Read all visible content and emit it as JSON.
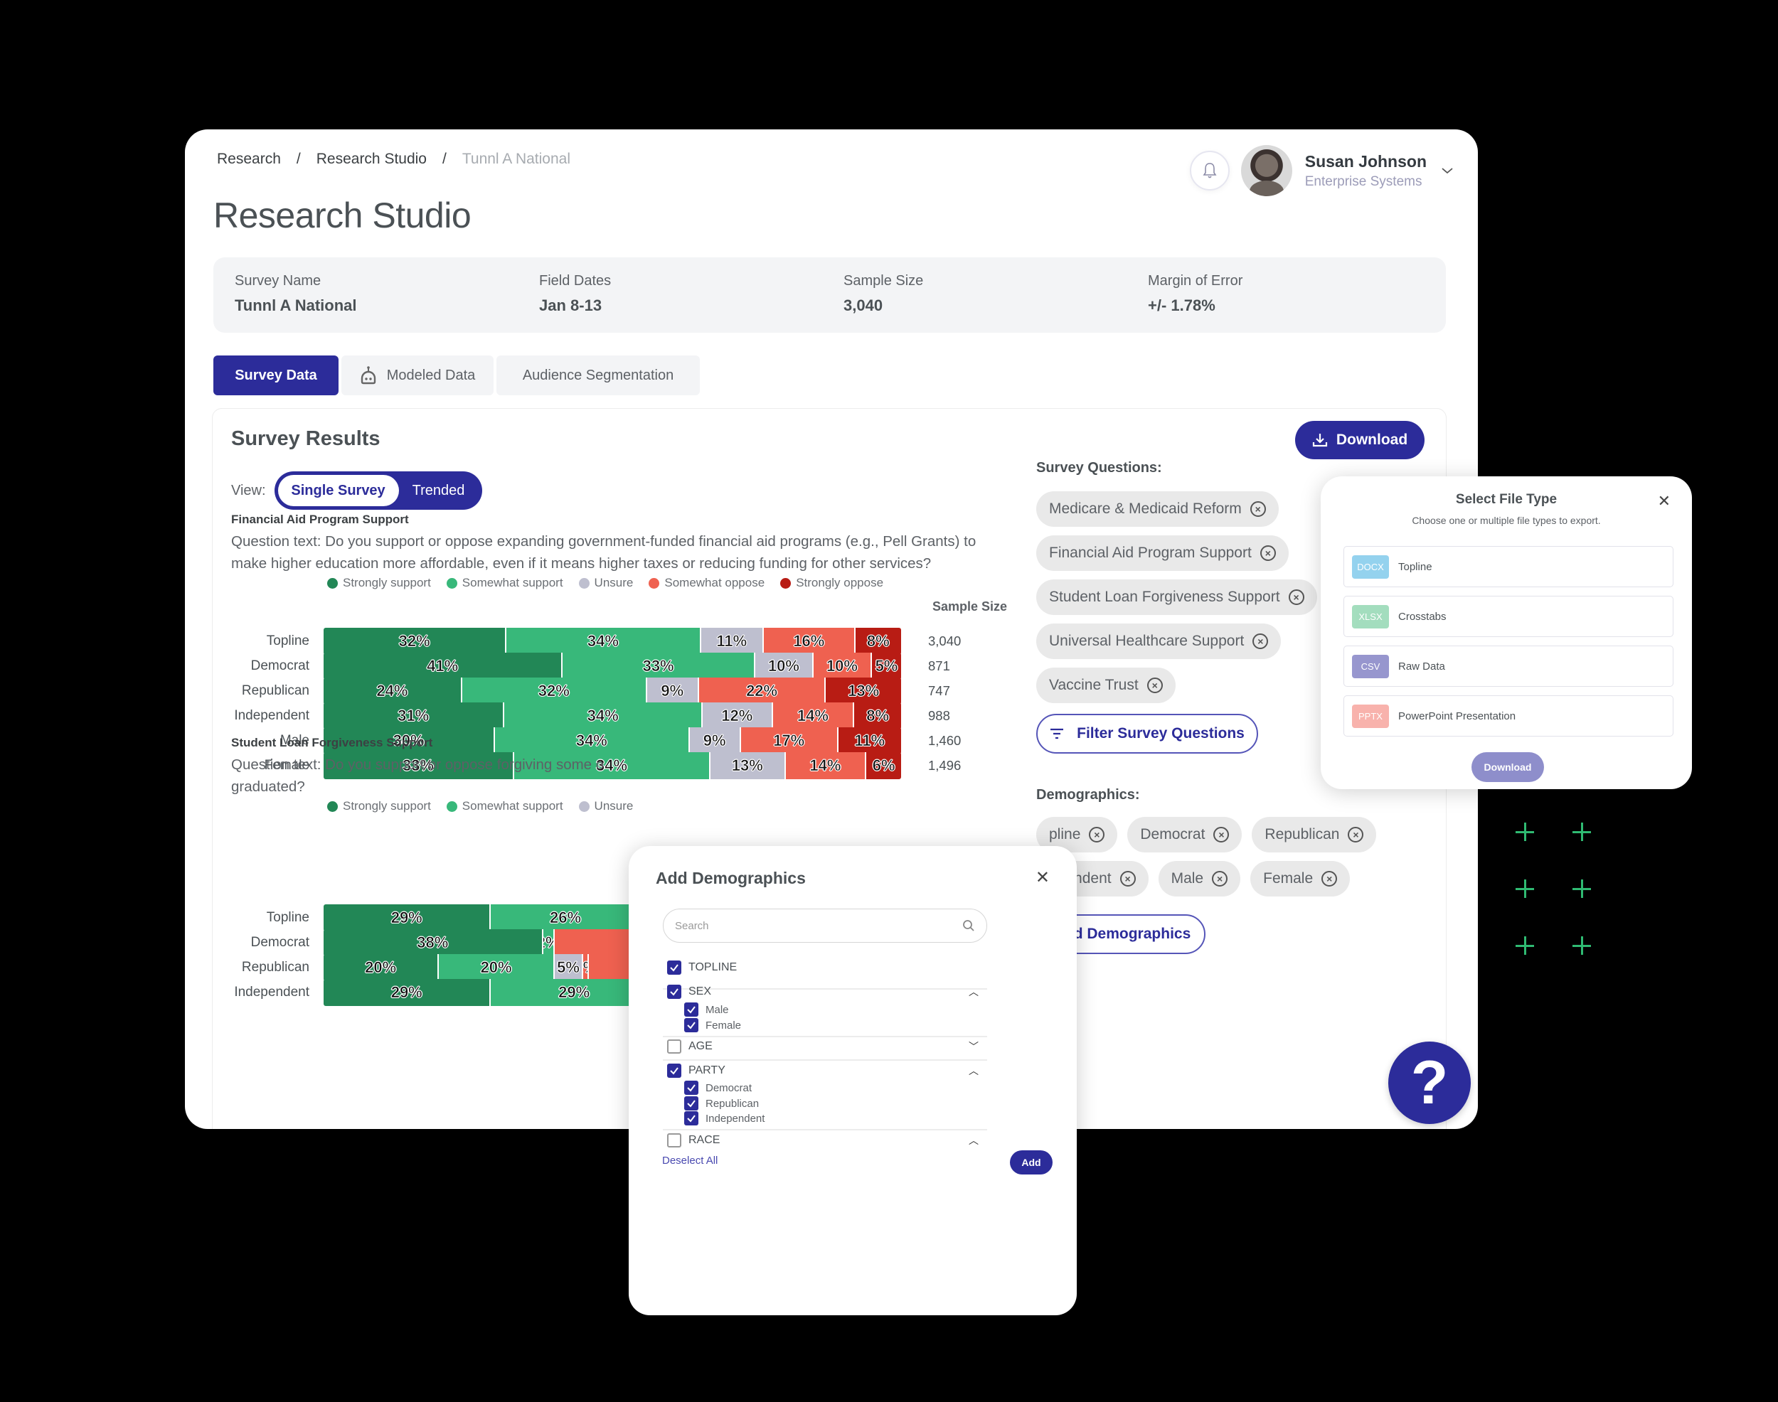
{
  "breadcrumb": [
    "Research",
    "Research Studio",
    "Tunnl A National"
  ],
  "page_title": "Research Studio",
  "user": {
    "name": "Susan Johnson",
    "org": "Enterprise Systems"
  },
  "info": [
    {
      "label": "Survey Name",
      "value": "Tunnl A National"
    },
    {
      "label": "Field Dates",
      "value": "Jan 8-13"
    },
    {
      "label": "Sample Size",
      "value": "3,040"
    },
    {
      "label": "Margin of Error",
      "value": "+/- 1.78%"
    }
  ],
  "tabs": [
    {
      "label": "Survey Data",
      "active": true
    },
    {
      "label": "Modeled Data",
      "icon": "robot-icon"
    },
    {
      "label": "Audience Segmentation"
    }
  ],
  "results": {
    "title": "Survey Results",
    "download_label": "Download",
    "view_label": "View:",
    "view_options": [
      "Single Survey",
      "Trended"
    ],
    "sample_size_header": "Sample Size"
  },
  "colors": {
    "strongly_support": "#228756",
    "somewhat_support": "#38b87a",
    "unsure": "#bebfcf",
    "somewhat_oppose": "#ef6150",
    "strongly_oppose": "#b81c14",
    "accent": "#2c2c9a"
  },
  "legend": [
    "Strongly support",
    "Somewhat support",
    "Unsure",
    "Somewhat oppose",
    "Strongly oppose"
  ],
  "chart_data": [
    {
      "type": "bar",
      "stacked": true,
      "orientation": "horizontal",
      "title": "Financial Aid Program Support",
      "question": "Question text: Do you support or oppose expanding government-funded financial aid programs (e.g., Pell Grants) to make higher education more affordable, even if it means higher taxes or reducing funding for other services?",
      "categories": [
        "Topline",
        "Democrat",
        "Republican",
        "Independent",
        "Male",
        "Female"
      ],
      "series": [
        {
          "name": "Strongly support",
          "values": [
            32,
            41,
            24,
            31,
            30,
            33
          ]
        },
        {
          "name": "Somewhat support",
          "values": [
            34,
            33,
            32,
            34,
            34,
            34
          ]
        },
        {
          "name": "Unsure",
          "values": [
            11,
            10,
            9,
            12,
            9,
            13
          ]
        },
        {
          "name": "Somewhat oppose",
          "values": [
            16,
            10,
            22,
            14,
            17,
            14
          ]
        },
        {
          "name": "Strongly oppose",
          "values": [
            8,
            5,
            13,
            8,
            11,
            6
          ]
        }
      ],
      "sample_sizes": [
        "3,040",
        "871",
        "747",
        "988",
        "1,460",
        "1,496"
      ],
      "legend_position": "top"
    },
    {
      "type": "bar",
      "stacked": true,
      "orientation": "horizontal",
      "title": "Student Loan Forgiveness Support",
      "question": "Question text: Do you support or oppose forgiving some o",
      "question_line2": "graduated?",
      "categories": [
        "Topline",
        "Democrat",
        "Republican",
        "Independent"
      ],
      "series": [
        {
          "name": "Strongly support",
          "values": [
            29,
            38,
            20,
            29
          ]
        },
        {
          "name": "Somewhat support",
          "values": [
            26,
            2,
            20,
            29
          ]
        },
        {
          "name": "Unsure",
          "values": [
            null,
            null,
            5,
            null
          ]
        },
        {
          "name": "Somewhat oppose",
          "values": [
            null,
            null,
            1,
            null
          ]
        }
      ],
      "note": "partially obscured by Add Demographics modal",
      "legend_visible": [
        "Strongly support",
        "Somewhat support",
        "Un"
      ]
    }
  ],
  "survey_questions": {
    "label": "Survey Questions:",
    "chips": [
      "Medicare & Medicaid Reform",
      "Financial Aid Program Support",
      "Student Loan Forgiveness Support",
      "Universal Healthcare Support",
      "Vaccine Trust"
    ],
    "filter_label": "Filter Survey Questions"
  },
  "demographics": {
    "label": "Demographics:",
    "chips": [
      "pline",
      "Democrat",
      "Republican",
      "ependent",
      "Male",
      "Female"
    ],
    "add_label": "Add Demographics"
  },
  "file_modal": {
    "title": "Select File Type",
    "subtitle": "Choose one or multiple file types to export.",
    "items": [
      {
        "badge": "DOCX",
        "label": "Topline",
        "color": "#8fd0ee"
      },
      {
        "badge": "XLSX",
        "label": "Crosstabs",
        "color": "#9fdcbb"
      },
      {
        "badge": "CSV",
        "label": "Raw Data",
        "color": "#9291cc"
      },
      {
        "badge": "PPTX",
        "label": "PowerPoint Presentation",
        "color": "#f8aea8"
      }
    ],
    "download_label": "Download"
  },
  "demo_modal": {
    "title": "Add Demographics",
    "search_placeholder": "Search",
    "groups": [
      {
        "label": "TOPLINE",
        "checked": true
      },
      {
        "label": "SEX",
        "checked": true,
        "expanded": true,
        "items": [
          "Male",
          "Female"
        ]
      },
      {
        "label": "AGE",
        "checked": false,
        "expanded": false
      },
      {
        "label": "PARTY",
        "checked": true,
        "expanded": true,
        "items": [
          "Democrat",
          "Republican",
          "Independent"
        ]
      },
      {
        "label": "RACE",
        "checked": false,
        "expanded": true
      }
    ],
    "deselect_label": "Deselect All",
    "add_label": "Add"
  },
  "help": {
    "label": "?"
  }
}
